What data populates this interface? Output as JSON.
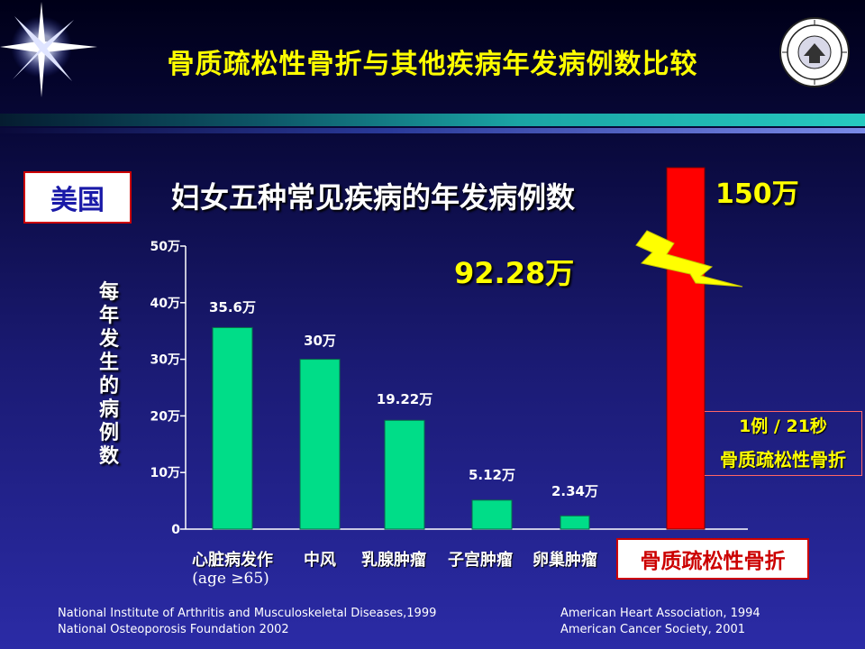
{
  "title": "骨质疏松性骨折与其他疾病年发病例数比较",
  "country": "美国",
  "subtitle": "妇女五种常见疾病的年发病例数",
  "total_label": "92.28万",
  "ylabel": "每年发生的病例数",
  "osteo": {
    "value_label": "150万",
    "rate_line1": "1例 / 21秒",
    "rate_line2": "骨质疏松性骨折",
    "category_box": "骨质疏松性骨折"
  },
  "xcat_sub": "(age ≥65)",
  "sources": {
    "left_1": "National Institute  of Arthritis and Musculoskeletal  Diseases,1999",
    "left_2": "National Osteoporosis Foundation 2002",
    "right_1": "American Heart Association, 1994",
    "right_2": "American Cancer Society, 2001"
  },
  "colors": {
    "bar": "#00dd88",
    "osteo_bar": "#ff0000",
    "title": "#ffff00",
    "lightning": "#ffff00"
  },
  "icons": {
    "corner": "star-burst-icon",
    "logo": "university-seal-logo",
    "arrow": "lightning-arrow-icon"
  },
  "chart_data": {
    "type": "bar",
    "categories": [
      "心脏病发作",
      "中风",
      "乳腺肿瘤",
      "子宫肿瘤",
      "卵巢肿瘤",
      "骨质疏松性骨折"
    ],
    "values": [
      35.6,
      30,
      19.22,
      5.12,
      2.34,
      150
    ],
    "value_labels": [
      "35.6万",
      "30万",
      "19.22万",
      "5.12万",
      "2.34万",
      "150万"
    ],
    "unit": "万",
    "ylabel": "每年发生的病例数",
    "ylim": [
      0,
      50
    ],
    "yticks": [
      0,
      10,
      20,
      30,
      40,
      50
    ],
    "ytick_labels": [
      "0",
      "10万",
      "20万",
      "30万",
      "40万",
      "50万"
    ],
    "grid": false,
    "note": "骨质疏松性骨折 bar exceeds axis range"
  }
}
